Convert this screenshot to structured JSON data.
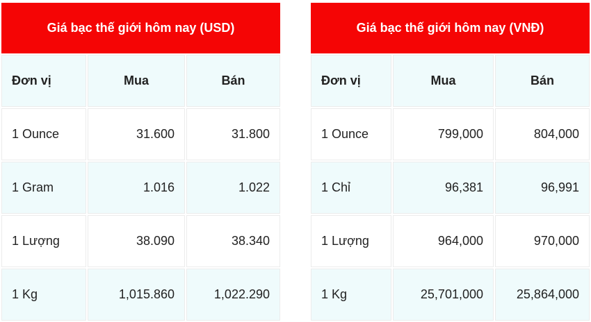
{
  "colors": {
    "header_bg": "#f50505",
    "alt_row_bg": "#effbfc"
  },
  "usd": {
    "title": "Giá bạc thế giới hôm nay (USD)",
    "columns": [
      "Đơn vị",
      "Mua",
      "Bán"
    ],
    "rows": [
      [
        "1 Ounce",
        "31.600",
        "31.800"
      ],
      [
        "1 Gram",
        "1.016",
        "1.022"
      ],
      [
        "1 Lượng",
        "38.090",
        "38.340"
      ],
      [
        "1 Kg",
        "1,015.860",
        "1,022.290"
      ]
    ]
  },
  "vnd": {
    "title": "Giá bạc thế giới hôm nay (VNĐ)",
    "columns": [
      "Đơn vị",
      "Mua",
      "Bán"
    ],
    "rows": [
      [
        "1 Ounce",
        "799,000",
        "804,000"
      ],
      [
        "1 Chỉ",
        "96,381",
        "96,991"
      ],
      [
        "1 Lượng",
        "964,000",
        "970,000"
      ],
      [
        "1 Kg",
        "25,701,000",
        "25,864,000"
      ]
    ]
  }
}
